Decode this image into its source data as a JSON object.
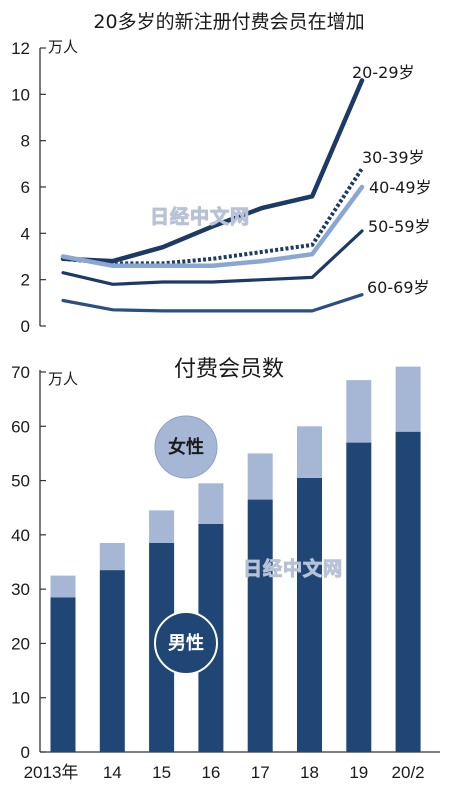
{
  "colors": {
    "dark_navy": "#1b3a66",
    "mid_navy": "#2b4f80",
    "light_blue": "#8aa7d4",
    "female_fill": "#a6b7d6",
    "male_fill": "#1f4674",
    "axis": "#333333"
  },
  "watermark": {
    "text": "日经中文网"
  },
  "chart_data": [
    {
      "type": "line",
      "title": "20多岁的新注册付费会员在增加",
      "unit_label": "万人",
      "x": [
        0,
        1,
        2,
        3,
        4,
        5,
        6
      ],
      "ylim": [
        0,
        12
      ],
      "yticks": [
        "0",
        "2",
        "4",
        "6",
        "8",
        "10",
        "12"
      ],
      "grid": false,
      "series": [
        {
          "name": "20-29岁",
          "style": "solid-thick",
          "color": "#1b3a66",
          "values": [
            2.9,
            2.8,
            3.4,
            4.3,
            5.1,
            5.6,
            10.6
          ]
        },
        {
          "name": "30-39岁",
          "style": "dotted",
          "color": "#1b3a66",
          "values": [
            2.9,
            2.7,
            2.7,
            2.9,
            3.2,
            3.5,
            6.8
          ]
        },
        {
          "name": "40-49岁",
          "style": "solid-thick",
          "color": "#8aa7d4",
          "values": [
            3.0,
            2.6,
            2.6,
            2.6,
            2.8,
            3.1,
            6.0
          ]
        },
        {
          "name": "50-59岁",
          "style": "solid",
          "color": "#1b3a66",
          "values": [
            2.3,
            1.8,
            1.9,
            1.9,
            2.0,
            2.1,
            4.1
          ]
        },
        {
          "name": "60-69岁",
          "style": "solid",
          "color": "#2b4f80",
          "values": [
            1.1,
            0.7,
            0.65,
            0.65,
            0.65,
            0.65,
            1.35
          ]
        }
      ]
    },
    {
      "type": "bar",
      "stacked": true,
      "title": "付费会员数",
      "unit_label": "万人",
      "categories": [
        "2013年",
        "14",
        "15",
        "16",
        "17",
        "18",
        "19",
        "20/2"
      ],
      "ylim": [
        0,
        70
      ],
      "yticks": [
        "0",
        "10",
        "20",
        "30",
        "40",
        "50",
        "60",
        "70"
      ],
      "grid": false,
      "series": [
        {
          "name": "男性",
          "color": "#1f4674",
          "values": [
            28.5,
            33.5,
            38.5,
            42.0,
            46.5,
            50.5,
            57.0,
            59.0
          ]
        },
        {
          "name": "女性",
          "color": "#a6b7d6",
          "values": [
            4.0,
            5.0,
            6.0,
            7.5,
            8.5,
            9.5,
            11.5,
            12.0
          ]
        }
      ]
    }
  ]
}
